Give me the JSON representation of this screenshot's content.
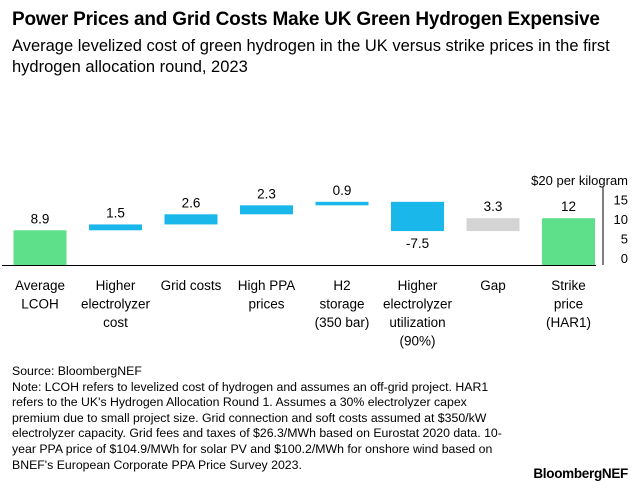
{
  "header": {
    "title": "Power Prices and Grid Costs Make UK Green Hydrogen Expensive",
    "subtitle": "Average levelized cost of green hydrogen in the UK versus strike prices in the first hydrogen allocation round, 2023"
  },
  "chart_data": {
    "type": "bar",
    "subtype": "waterfall",
    "unit_label": "$20 per kilogram",
    "categories": [
      [
        "Average",
        "LCOH"
      ],
      [
        "Higher",
        "electrolyzer",
        "cost"
      ],
      [
        "Grid costs"
      ],
      [
        "High PPA",
        "prices"
      ],
      [
        "H2",
        "storage",
        "(350 bar)"
      ],
      [
        "Higher",
        "electrolyzer",
        "utilization",
        "(90%)"
      ],
      [
        "Gap"
      ],
      [
        "Strike",
        "price",
        "(HAR1)"
      ]
    ],
    "bars": [
      {
        "start": 0,
        "end": 8.9,
        "label": "8.9",
        "kind": "total"
      },
      {
        "start": 8.9,
        "end": 10.4,
        "label": "1.5",
        "kind": "increase"
      },
      {
        "start": 10.4,
        "end": 13.0,
        "label": "2.6",
        "kind": "increase"
      },
      {
        "start": 13.0,
        "end": 15.3,
        "label": "2.3",
        "kind": "increase"
      },
      {
        "start": 15.3,
        "end": 16.2,
        "label": "0.9",
        "kind": "increase"
      },
      {
        "start": 16.2,
        "end": 8.7,
        "label": "-7.5",
        "kind": "decrease"
      },
      {
        "start": 8.7,
        "end": 12.0,
        "label": "3.3",
        "kind": "gap"
      },
      {
        "start": 0,
        "end": 12.0,
        "label": "12",
        "kind": "total"
      }
    ],
    "y_ticks": [
      {
        "value": 0,
        "label": "0"
      },
      {
        "value": 5,
        "label": "5"
      },
      {
        "value": 10,
        "label": "10"
      },
      {
        "value": 15,
        "label": "15"
      }
    ],
    "ylim": [
      0,
      20
    ],
    "grid": false,
    "colors": {
      "total": "#5ee08a",
      "increase": "#1ab7ea",
      "decrease": "#1ab7ea",
      "gap": "#d4d4d4",
      "axis": "#000000"
    }
  },
  "footer": {
    "source": "Source: BloombergNEF",
    "note": "Note: LCOH refers to levelized cost of hydrogen and assumes an off-grid project. HAR1 refers to the UK's Hydrogen Allocation Round 1. Assumes a 30% electrolyzer capex premium due to small project size. Grid connection and soft costs assumed at $350/kW electrolyzer capacity. Grid fees and taxes of $26.3/MWh based on Eurostat 2020 data. 10-year PPA price of $104.9/MWh for solar PV and $100.2/MWh for onshore wind based on BNEF's European Corporate PPA Price Survey 2023.",
    "brand": "BloombergNEF"
  }
}
